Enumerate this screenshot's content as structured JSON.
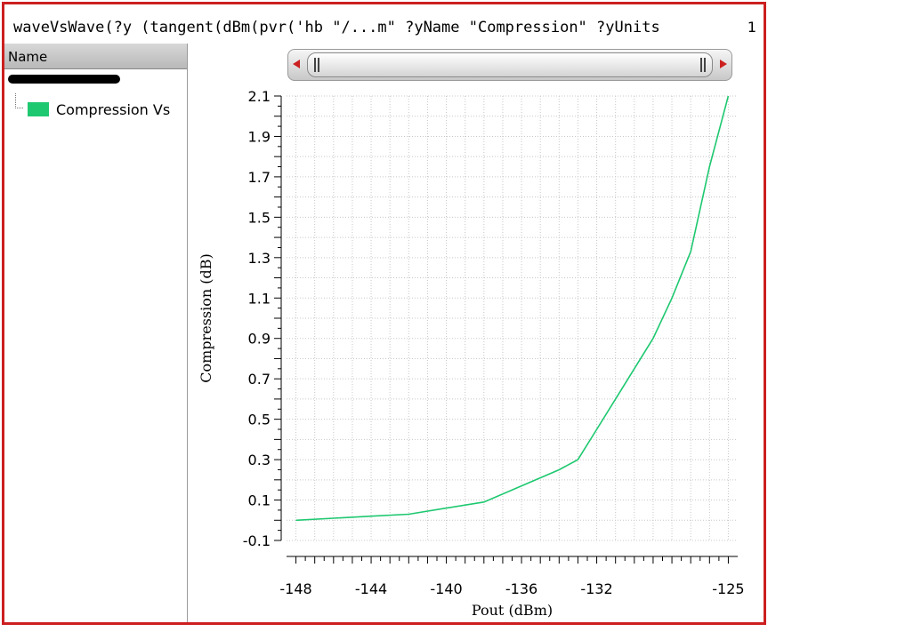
{
  "window": {
    "title": "waveVsWave(?y (tangent(dBm(pvr('hb \"/...m\" ?yName \"Compression\" ?yUnits",
    "subwindow_number": "1"
  },
  "sidebar": {
    "header": "Name",
    "legend_items": [
      {
        "label": "Compression Vs",
        "color": "#1ec870"
      }
    ]
  },
  "colors": {
    "frame": "#cc2020",
    "trace": "#1ec870",
    "grid": "#c8c8c8"
  },
  "chart_data": {
    "type": "line",
    "title": "",
    "xlabel": "Pout (dBm)",
    "ylabel": "Compression (dB)",
    "xlim": [
      -148.5,
      -124.5
    ],
    "ylim": [
      -0.1,
      2.1
    ],
    "xticks": [
      -148,
      -144,
      -140,
      -136,
      -132,
      -125
    ],
    "yticks": [
      -0.1,
      0.1,
      0.3,
      0.5,
      0.7,
      0.9,
      1.1,
      1.3,
      1.5,
      1.7,
      1.9,
      2.1
    ],
    "grid": true,
    "series": [
      {
        "name": "Compression Vs",
        "color": "#1ec870",
        "x": [
          -148,
          -146,
          -144,
          -142,
          -140,
          -138,
          -136,
          -134,
          -133,
          -132,
          -131,
          -130,
          -129,
          -128,
          -127,
          -126,
          -125
        ],
        "y": [
          0.0,
          0.01,
          0.02,
          0.03,
          0.06,
          0.09,
          0.17,
          0.25,
          0.3,
          0.45,
          0.6,
          0.75,
          0.9,
          1.1,
          1.33,
          1.75,
          2.1
        ]
      }
    ]
  }
}
